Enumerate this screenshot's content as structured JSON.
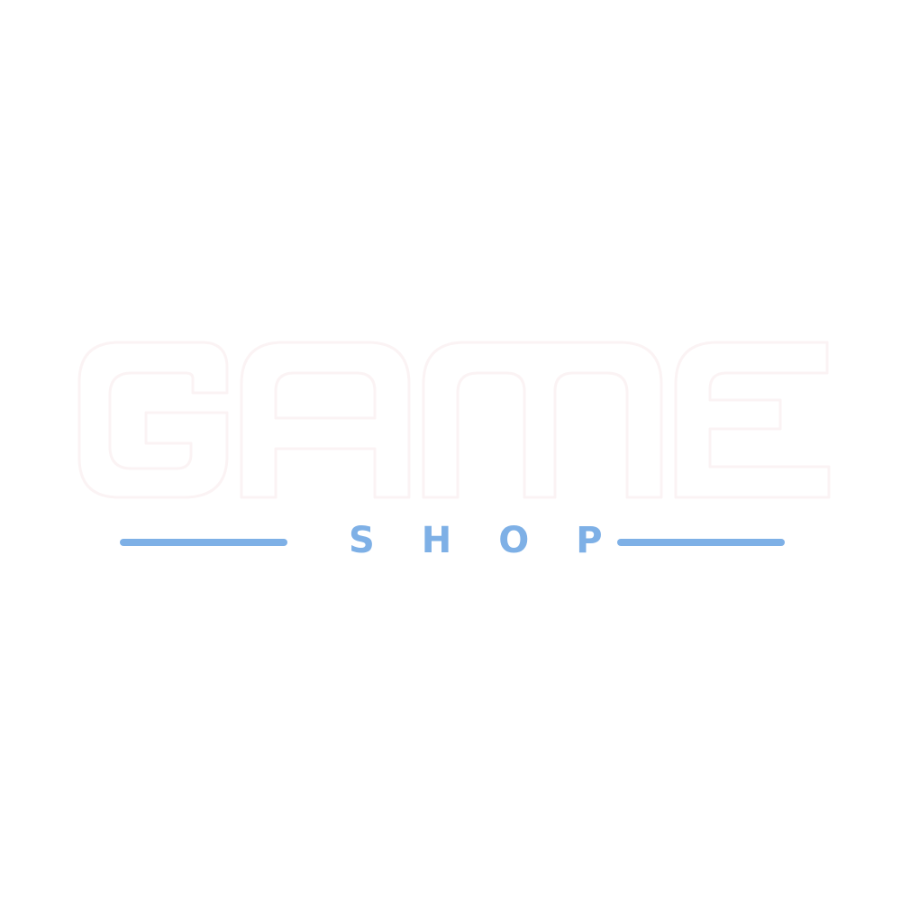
{
  "logo": {
    "word": "GAME",
    "tagline": "SHOP",
    "colors": {
      "background": "#ffffff",
      "word_outline": "#fbf3f4",
      "accent": "#7eb0e6"
    }
  }
}
